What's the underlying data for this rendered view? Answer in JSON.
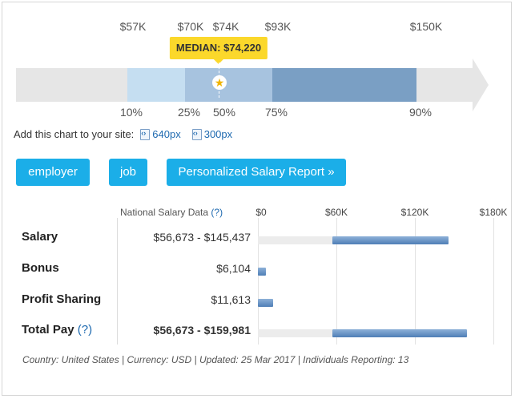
{
  "percentile_chart": {
    "top_labels": [
      "$57K",
      "$70K",
      "$74K",
      "$93K",
      "$150K"
    ],
    "median_label": "MEDIAN: $74,220",
    "percentile_labels": [
      "10%",
      "25%",
      "50%",
      "75%",
      "90%"
    ],
    "colors": {
      "arrow": "#e6e6e6",
      "band_10_25": "#c5def1",
      "band_25_75": "#a7c3df",
      "band_75_90": "#7a9fc4",
      "median": "#fbd82b"
    },
    "icons": {
      "median_marker": "star-icon"
    }
  },
  "add_chart": {
    "prompt": "Add this chart to your site:",
    "link_640": "640px",
    "link_300": "300px"
  },
  "buttons": {
    "employer": "employer",
    "job": "job",
    "report": "Personalized Salary Report »"
  },
  "salary_table": {
    "header": "National Salary Data",
    "help": "(?)",
    "axis_ticks": [
      "$0",
      "$60K",
      "$120K",
      "$180K"
    ],
    "rows": [
      {
        "label": "Salary",
        "help": "",
        "value": "$56,673 - $145,437",
        "range_low": 56673,
        "range_high": 145437
      },
      {
        "label": "Bonus",
        "help": "",
        "value": "$6,104",
        "range_low": 0,
        "range_high": 6104
      },
      {
        "label": "Profit Sharing",
        "help": "",
        "value": "$11,613",
        "range_low": 0,
        "range_high": 11613
      },
      {
        "label": "Total Pay",
        "help": "(?)",
        "value": "$56,673 - $159,981",
        "range_low": 56673,
        "range_high": 159981
      }
    ],
    "axis_max": 180000
  },
  "footer": "Country: United States | Currency: USD | Updated: 25 Mar 2017 | Individuals Reporting: 13"
}
